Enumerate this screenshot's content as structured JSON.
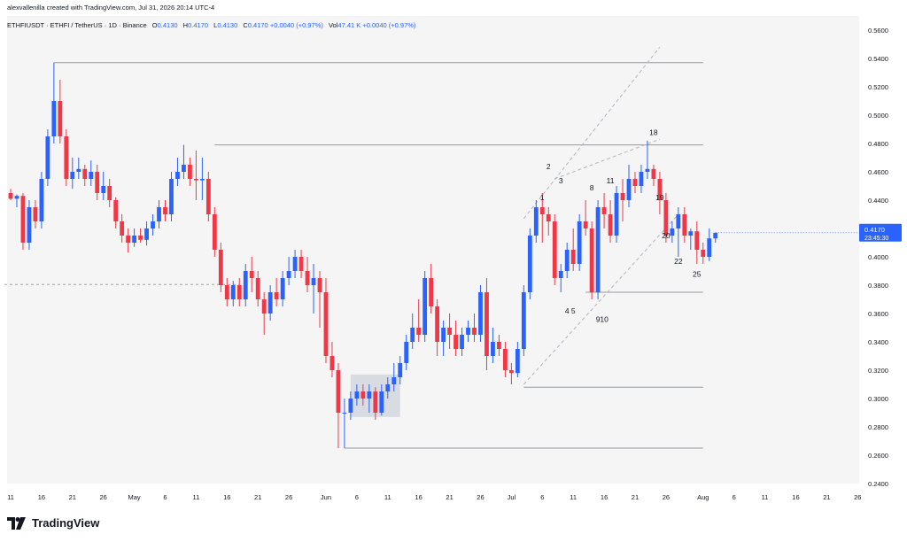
{
  "header": {
    "author_line": "alexvallenilla created with TradingView.com, Jul 31, 2026 20:14 UTC-4",
    "symbol": "ETHFIUSDT · ETHFI / TetherUS · 1D · Binance",
    "open_label": "O",
    "open": "0.4130",
    "high_label": "H",
    "high": "0.4170",
    "low_label": "L",
    "low": "0.4130",
    "close_label": "C",
    "close": "0.4170",
    "change": "+0.0040 (+0.97%)",
    "vol_label": "Vol",
    "vol": "47.41 K",
    "vol_change": "+0.0040 (+0.97%)"
  },
  "price_badge": {
    "price": "0.4170",
    "countdown": "23:45:30"
  },
  "footer": {
    "brand": "TradingView"
  },
  "colors": {
    "up": "#2962ff",
    "down": "#f23645",
    "level_line": "#9598a1",
    "background": "#f5f5f5"
  },
  "chart_data": {
    "type": "candlestick",
    "title": "",
    "ylim": [
      0.24,
      0.57
    ],
    "y_ticks": [
      "0.5600",
      "0.5400",
      "0.5200",
      "0.5000",
      "0.4800",
      "0.4600",
      "0.4400",
      "0.4200",
      "0.4000",
      "0.3800",
      "0.3600",
      "0.3400",
      "0.3200",
      "0.3000",
      "0.2800",
      "0.2600",
      "0.2400"
    ],
    "x_ticks": [
      {
        "label": "11",
        "day": 0
      },
      {
        "label": "16",
        "day": 5
      },
      {
        "label": "21",
        "day": 10
      },
      {
        "label": "26",
        "day": 15
      },
      {
        "label": "May",
        "day": 20
      },
      {
        "label": "6",
        "day": 25
      },
      {
        "label": "11",
        "day": 30
      },
      {
        "label": "16",
        "day": 35
      },
      {
        "label": "21",
        "day": 40
      },
      {
        "label": "26",
        "day": 45
      },
      {
        "label": "Jun",
        "day": 51
      },
      {
        "label": "6",
        "day": 56
      },
      {
        "label": "11",
        "day": 61
      },
      {
        "label": "16",
        "day": 66
      },
      {
        "label": "21",
        "day": 71
      },
      {
        "label": "26",
        "day": 76
      },
      {
        "label": "Jul",
        "day": 81
      },
      {
        "label": "6",
        "day": 86
      },
      {
        "label": "11",
        "day": 91
      },
      {
        "label": "16",
        "day": 96
      },
      {
        "label": "21",
        "day": 101
      },
      {
        "label": "26",
        "day": 106
      },
      {
        "label": "Aug",
        "day": 112
      },
      {
        "label": "6",
        "day": 117
      },
      {
        "label": "11",
        "day": 122
      },
      {
        "label": "16",
        "day": 127
      },
      {
        "label": "21",
        "day": 132
      },
      {
        "label": "26",
        "day": 137
      }
    ],
    "candles": [
      [
        0.445,
        0.448,
        0.44,
        0.441
      ],
      [
        0.441,
        0.444,
        0.435,
        0.443
      ],
      [
        0.443,
        0.445,
        0.405,
        0.41
      ],
      [
        0.41,
        0.44,
        0.405,
        0.435
      ],
      [
        0.435,
        0.44,
        0.42,
        0.425
      ],
      [
        0.425,
        0.46,
        0.42,
        0.455
      ],
      [
        0.455,
        0.49,
        0.45,
        0.485
      ],
      [
        0.485,
        0.537,
        0.48,
        0.51
      ],
      [
        0.51,
        0.525,
        0.48,
        0.485
      ],
      [
        0.485,
        0.49,
        0.45,
        0.455
      ],
      [
        0.455,
        0.47,
        0.448,
        0.46
      ],
      [
        0.46,
        0.47,
        0.455,
        0.462
      ],
      [
        0.462,
        0.465,
        0.45,
        0.455
      ],
      [
        0.455,
        0.468,
        0.45,
        0.46
      ],
      [
        0.46,
        0.465,
        0.44,
        0.445
      ],
      [
        0.445,
        0.46,
        0.44,
        0.45
      ],
      [
        0.45,
        0.455,
        0.435,
        0.44
      ],
      [
        0.44,
        0.442,
        0.42,
        0.425
      ],
      [
        0.425,
        0.43,
        0.41,
        0.415
      ],
      [
        0.415,
        0.42,
        0.403,
        0.41
      ],
      [
        0.41,
        0.42,
        0.407,
        0.415
      ],
      [
        0.415,
        0.42,
        0.41,
        0.412
      ],
      [
        0.412,
        0.425,
        0.408,
        0.42
      ],
      [
        0.42,
        0.43,
        0.415,
        0.425
      ],
      [
        0.425,
        0.44,
        0.42,
        0.435
      ],
      [
        0.435,
        0.44,
        0.425,
        0.43
      ],
      [
        0.43,
        0.46,
        0.425,
        0.455
      ],
      [
        0.455,
        0.47,
        0.45,
        0.46
      ],
      [
        0.46,
        0.479,
        0.455,
        0.465
      ],
      [
        0.465,
        0.47,
        0.45,
        0.455
      ],
      [
        0.455,
        0.475,
        0.44,
        0.454
      ],
      [
        0.454,
        0.47,
        0.44,
        0.455
      ],
      [
        0.455,
        0.46,
        0.425,
        0.43
      ],
      [
        0.43,
        0.435,
        0.4,
        0.405
      ],
      [
        0.405,
        0.41,
        0.375,
        0.38
      ],
      [
        0.38,
        0.385,
        0.365,
        0.37
      ],
      [
        0.37,
        0.383,
        0.365,
        0.38
      ],
      [
        0.38,
        0.385,
        0.365,
        0.37
      ],
      [
        0.37,
        0.395,
        0.365,
        0.39
      ],
      [
        0.39,
        0.4,
        0.375,
        0.385
      ],
      [
        0.385,
        0.39,
        0.365,
        0.37
      ],
      [
        0.37,
        0.375,
        0.345,
        0.36
      ],
      [
        0.36,
        0.38,
        0.355,
        0.375
      ],
      [
        0.375,
        0.385,
        0.365,
        0.37
      ],
      [
        0.37,
        0.39,
        0.365,
        0.385
      ],
      [
        0.385,
        0.4,
        0.38,
        0.39
      ],
      [
        0.39,
        0.405,
        0.385,
        0.4
      ],
      [
        0.4,
        0.405,
        0.385,
        0.39
      ],
      [
        0.39,
        0.4,
        0.375,
        0.38
      ],
      [
        0.38,
        0.395,
        0.36,
        0.385
      ],
      [
        0.385,
        0.39,
        0.35,
        0.375
      ],
      [
        0.375,
        0.385,
        0.325,
        0.33
      ],
      [
        0.33,
        0.34,
        0.315,
        0.32
      ],
      [
        0.32,
        0.325,
        0.265,
        0.29
      ],
      [
        0.29,
        0.3,
        0.265,
        0.29
      ],
      [
        0.29,
        0.305,
        0.285,
        0.3
      ],
      [
        0.3,
        0.31,
        0.295,
        0.305
      ],
      [
        0.305,
        0.31,
        0.295,
        0.3
      ],
      [
        0.3,
        0.31,
        0.29,
        0.305
      ],
      [
        0.305,
        0.308,
        0.285,
        0.29
      ],
      [
        0.29,
        0.31,
        0.288,
        0.305
      ],
      [
        0.305,
        0.315,
        0.3,
        0.31
      ],
      [
        0.31,
        0.325,
        0.305,
        0.315
      ],
      [
        0.315,
        0.33,
        0.31,
        0.325
      ],
      [
        0.325,
        0.345,
        0.32,
        0.34
      ],
      [
        0.34,
        0.36,
        0.335,
        0.35
      ],
      [
        0.35,
        0.37,
        0.34,
        0.345
      ],
      [
        0.345,
        0.39,
        0.34,
        0.385
      ],
      [
        0.385,
        0.395,
        0.36,
        0.365
      ],
      [
        0.365,
        0.37,
        0.33,
        0.34
      ],
      [
        0.34,
        0.355,
        0.33,
        0.35
      ],
      [
        0.35,
        0.36,
        0.335,
        0.345
      ],
      [
        0.345,
        0.355,
        0.33,
        0.335
      ],
      [
        0.335,
        0.35,
        0.33,
        0.345
      ],
      [
        0.345,
        0.355,
        0.34,
        0.35
      ],
      [
        0.35,
        0.36,
        0.34,
        0.345
      ],
      [
        0.345,
        0.38,
        0.34,
        0.375
      ],
      [
        0.375,
        0.385,
        0.32,
        0.33
      ],
      [
        0.33,
        0.35,
        0.325,
        0.34
      ],
      [
        0.34,
        0.345,
        0.33,
        0.335
      ],
      [
        0.335,
        0.34,
        0.315,
        0.32
      ],
      [
        0.32,
        0.325,
        0.31,
        0.318
      ],
      [
        0.318,
        0.34,
        0.315,
        0.335
      ],
      [
        0.335,
        0.38,
        0.33,
        0.375
      ],
      [
        0.375,
        0.42,
        0.37,
        0.415
      ],
      [
        0.415,
        0.44,
        0.41,
        0.435
      ],
      [
        0.435,
        0.445,
        0.41,
        0.43
      ],
      [
        0.43,
        0.435,
        0.415,
        0.425
      ],
      [
        0.425,
        0.43,
        0.38,
        0.385
      ],
      [
        0.385,
        0.395,
        0.375,
        0.39
      ],
      [
        0.39,
        0.41,
        0.385,
        0.405
      ],
      [
        0.405,
        0.42,
        0.39,
        0.395
      ],
      [
        0.395,
        0.43,
        0.39,
        0.425
      ],
      [
        0.425,
        0.44,
        0.415,
        0.42
      ],
      [
        0.42,
        0.425,
        0.37,
        0.375
      ],
      [
        0.375,
        0.44,
        0.37,
        0.435
      ],
      [
        0.435,
        0.445,
        0.42,
        0.43
      ],
      [
        0.43,
        0.44,
        0.41,
        0.415
      ],
      [
        0.415,
        0.45,
        0.41,
        0.445
      ],
      [
        0.445,
        0.455,
        0.425,
        0.44
      ],
      [
        0.44,
        0.465,
        0.435,
        0.455
      ],
      [
        0.455,
        0.46,
        0.445,
        0.45
      ],
      [
        0.45,
        0.465,
        0.445,
        0.46
      ],
      [
        0.46,
        0.482,
        0.455,
        0.462
      ],
      [
        0.462,
        0.465,
        0.45,
        0.455
      ],
      [
        0.455,
        0.46,
        0.43,
        0.44
      ],
      [
        0.44,
        0.445,
        0.41,
        0.415
      ],
      [
        0.415,
        0.425,
        0.41,
        0.42
      ],
      [
        0.42,
        0.435,
        0.4,
        0.43
      ],
      [
        0.43,
        0.435,
        0.41,
        0.415
      ],
      [
        0.415,
        0.42,
        0.405,
        0.418
      ],
      [
        0.418,
        0.425,
        0.395,
        0.405
      ],
      [
        0.405,
        0.41,
        0.395,
        0.4
      ],
      [
        0.4,
        0.42,
        0.397,
        0.413
      ],
      [
        0.413,
        0.417,
        0.41,
        0.417
      ]
    ],
    "horizontal_levels": [
      {
        "price": 0.537,
        "from_day": 7
      },
      {
        "price": 0.479,
        "from_day": 33
      },
      {
        "price": 0.375,
        "from_day": 93
      },
      {
        "price": 0.308,
        "from_day": 83
      },
      {
        "price": 0.265,
        "from_day": 54
      }
    ],
    "dashed_level": {
      "price": 0.3805,
      "from_day": -1,
      "to_day": 37
    },
    "trend_lines": [
      {
        "from": [
          83,
          0.427
        ],
        "to": [
          105,
          0.548
        ]
      },
      {
        "from": [
          83,
          0.31
        ],
        "to": [
          108,
          0.43
        ]
      },
      {
        "from": [
          88,
          0.455
        ],
        "to": [
          105,
          0.483
        ]
      }
    ],
    "highlight_box": {
      "from_day": 55,
      "to_day": 63,
      "top": 0.317,
      "bottom": 0.287
    },
    "wave_labels": [
      {
        "label": "1",
        "day": 86,
        "price": 0.44
      },
      {
        "label": "2",
        "day": 87,
        "price": 0.462
      },
      {
        "label": "3",
        "day": 89,
        "price": 0.452
      },
      {
        "label": "4",
        "day": 90,
        "price": 0.36
      },
      {
        "label": "5",
        "day": 91,
        "price": 0.36
      },
      {
        "label": "8",
        "day": 94,
        "price": 0.447
      },
      {
        "label": "9",
        "day": 95,
        "price": 0.354
      },
      {
        "label": "10",
        "day": 96,
        "price": 0.354
      },
      {
        "label": "11",
        "day": 97,
        "price": 0.452
      },
      {
        "label": "18",
        "day": 104,
        "price": 0.486
      },
      {
        "label": "19",
        "day": 105,
        "price": 0.44
      },
      {
        "label": "20",
        "day": 106,
        "price": 0.413
      },
      {
        "label": "22",
        "day": 108,
        "price": 0.395
      },
      {
        "label": "25",
        "day": 111,
        "price": 0.386
      }
    ]
  }
}
